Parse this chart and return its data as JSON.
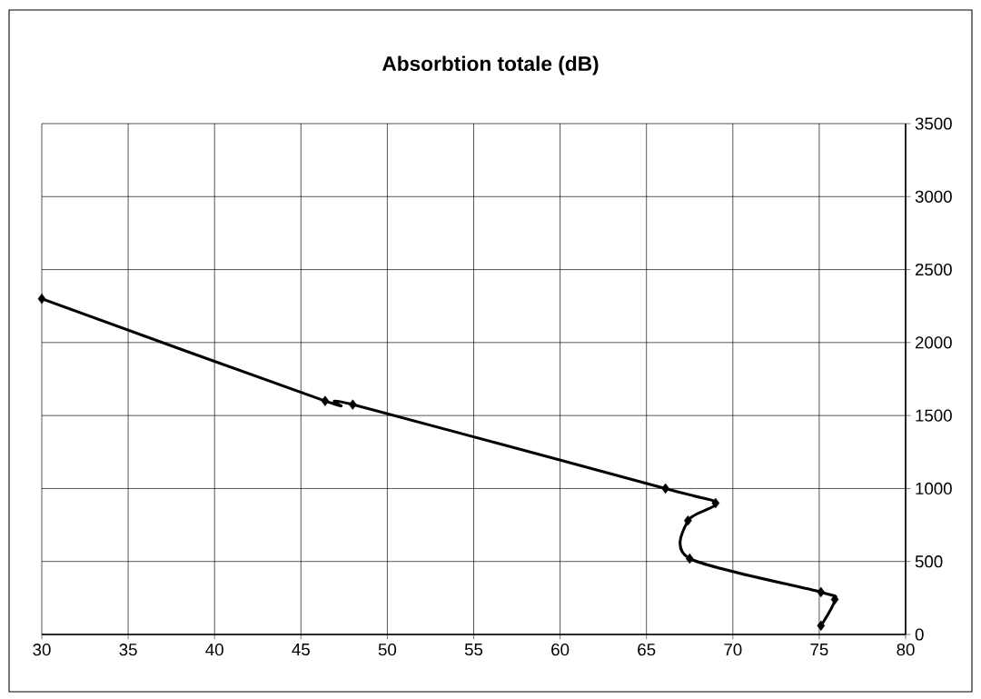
{
  "chart_data": {
    "type": "line",
    "title": "Absorbtion totale (dB)",
    "x": [
      30,
      46.4,
      48.0,
      66.1,
      69.0,
      67.4,
      67.5,
      75.1,
      75.9,
      75.1
    ],
    "series": [
      {
        "color": "#000000",
        "values": [
          2300,
          1600,
          1575,
          1000,
          900,
          780,
          520,
          290,
          240,
          60
        ]
      }
    ],
    "xlim": [
      30,
      80
    ],
    "xticks": [
      30,
      35,
      40,
      45,
      50,
      55,
      60,
      65,
      70,
      75,
      80
    ],
    "ylim": [
      0,
      3500
    ],
    "yticks": [
      0,
      500,
      1000,
      1500,
      2000,
      2500,
      3000,
      3500
    ],
    "grid": true,
    "marker": "diamond",
    "line_style": "solid"
  }
}
